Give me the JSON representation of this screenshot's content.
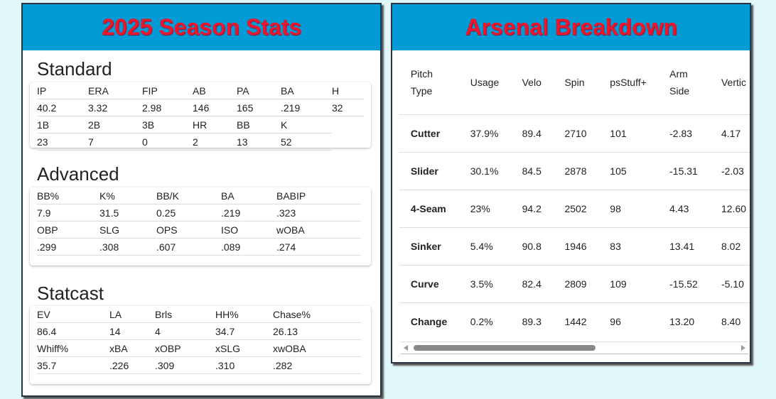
{
  "colors": {
    "background": "#e0f8fa",
    "header": "#039bd5",
    "title": "#e8192c"
  },
  "season": {
    "title": "2025 Season Stats",
    "standard": {
      "title": "Standard",
      "rows": [
        [
          "IP",
          "ERA",
          "FIP",
          "AB",
          "PA",
          "BA",
          "H"
        ],
        [
          "40.2",
          "3.32",
          "2.98",
          "146",
          "165",
          ".219",
          "32"
        ],
        [
          "1B",
          "2B",
          "3B",
          "HR",
          "BB",
          "K"
        ],
        [
          "23",
          "7",
          "0",
          "2",
          "13",
          "52"
        ]
      ]
    },
    "advanced": {
      "title": "Advanced",
      "rows": [
        [
          "BB%",
          "K%",
          "BB/K",
          "BA",
          "BABIP"
        ],
        [
          "7.9",
          "31.5",
          "0.25",
          ".219",
          ".323"
        ],
        [
          "OBP",
          "SLG",
          "OPS",
          "ISO",
          "wOBA"
        ],
        [
          ".299",
          ".308",
          ".607",
          ".089",
          ".274"
        ]
      ]
    },
    "statcast": {
      "title": "Statcast",
      "rows": [
        [
          "EV",
          "LA",
          "Brls",
          "HH%",
          "Chase%"
        ],
        [
          "86.4",
          "14",
          "4",
          "34.7",
          "26.13"
        ],
        [
          "Whiff%",
          "xBA",
          "xOBP",
          "xSLG",
          "xwOBA"
        ],
        [
          "35.7",
          ".226",
          ".309",
          ".310",
          ".282"
        ]
      ]
    }
  },
  "arsenal": {
    "title": "Arsenal Breakdown",
    "headers": [
      [
        "Pitch",
        "Type"
      ],
      [
        "Usage"
      ],
      [
        "Velo"
      ],
      [
        "Spin"
      ],
      [
        "psStuff+"
      ],
      [
        "Arm",
        "Side"
      ],
      [
        "Vertic"
      ]
    ],
    "rows": [
      [
        "Cutter",
        "37.9%",
        "89.4",
        "2710",
        "101",
        "-2.83",
        "4.17"
      ],
      [
        "Slider",
        "30.1%",
        "84.5",
        "2878",
        "105",
        "-15.31",
        "-2.03"
      ],
      [
        "4-Seam",
        "23%",
        "94.2",
        "2502",
        "98",
        "4.43",
        "12.60"
      ],
      [
        "Sinker",
        "5.4%",
        "90.8",
        "1946",
        "83",
        "13.41",
        "8.02"
      ],
      [
        "Curve",
        "3.5%",
        "82.4",
        "2809",
        "109",
        "-15.52",
        "-5.10"
      ],
      [
        "Change",
        "0.2%",
        "89.3",
        "1442",
        "96",
        "13.20",
        "8.40"
      ]
    ]
  }
}
